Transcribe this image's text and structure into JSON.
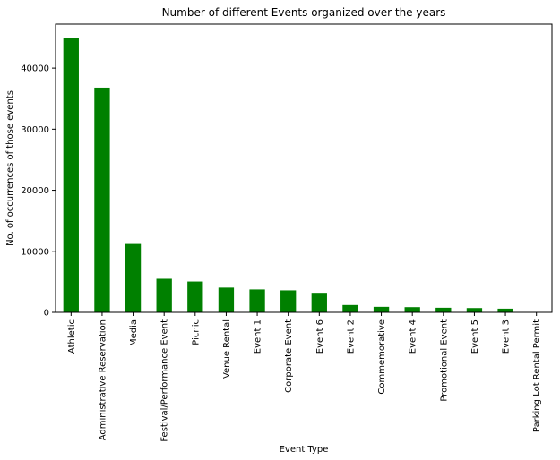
{
  "chart_data": {
    "type": "bar",
    "title": "Number of different Events organized over the years",
    "xlabel": "Event Type",
    "ylabel": "No. of occurrences of those events",
    "categories": [
      "Athletic",
      "Administrative Reservation",
      "Media",
      "Festival/Performance Event",
      "Picnic",
      "Venue Rental",
      "Event 1",
      "Corporate Event",
      "Event 6",
      "Event 2",
      "Commemorative",
      "Event 4",
      "Promotional Event",
      "Event 5",
      "Event 3",
      "Parking Lot Rental Permit"
    ],
    "values": [
      44900,
      36800,
      11200,
      5500,
      5050,
      4050,
      3750,
      3600,
      3200,
      1200,
      900,
      850,
      750,
      700,
      600,
      50
    ],
    "yticks": [
      0,
      10000,
      20000,
      30000,
      40000
    ],
    "ylim": [
      0,
      47200
    ],
    "bar_color": "#008000",
    "grid": false,
    "legend": "none"
  }
}
